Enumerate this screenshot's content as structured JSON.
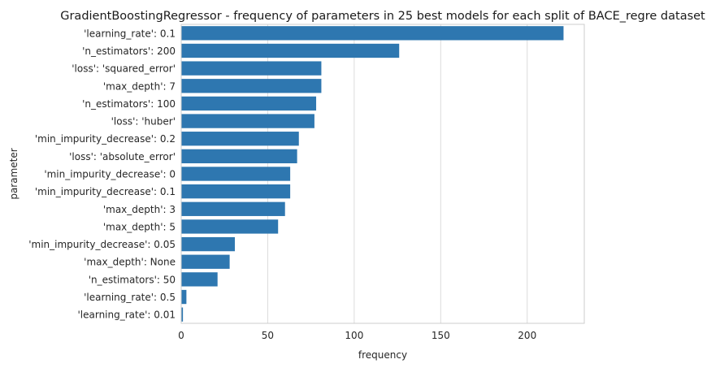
{
  "chart_data": {
    "type": "bar",
    "orientation": "horizontal",
    "title": "GradientBoostingRegressor - frequency of parameters in 25 best models for each split of BACE_regre dataset",
    "xlabel": "frequency",
    "ylabel": "parameter",
    "xlim": [
      0,
      233
    ],
    "xticks": [
      0,
      50,
      100,
      150,
      200
    ],
    "grid": "vertical",
    "bar_color": "#2e77b0",
    "categories": [
      "'learning_rate': 0.1",
      "'n_estimators': 200",
      "'loss': 'squared_error'",
      "'max_depth': 7",
      "'n_estimators': 100",
      "'loss': 'huber'",
      "'min_impurity_decrease': 0.2",
      "'loss': 'absolute_error'",
      "'min_impurity_decrease': 0",
      "'min_impurity_decrease': 0.1",
      "'max_depth': 3",
      "'max_depth': 5",
      "'min_impurity_decrease': 0.05",
      "'max_depth': None",
      "'n_estimators': 50",
      "'learning_rate': 0.5",
      "'learning_rate': 0.01"
    ],
    "values": [
      221,
      126,
      81,
      81,
      78,
      77,
      68,
      67,
      63,
      63,
      60,
      56,
      31,
      28,
      21,
      3,
      1
    ]
  }
}
